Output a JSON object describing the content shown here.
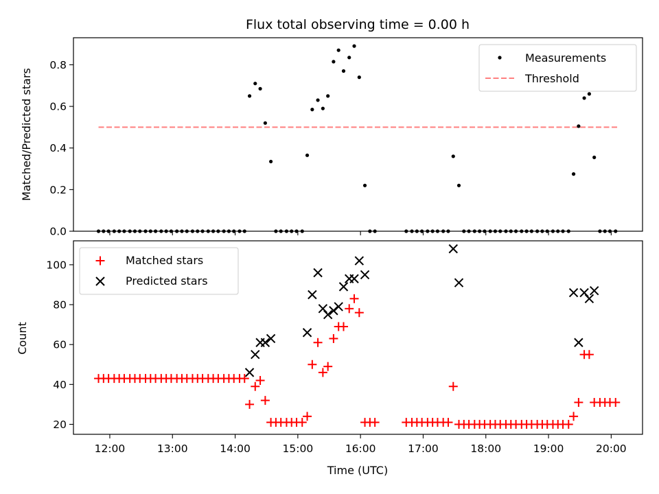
{
  "chart_data": [
    {
      "type": "scatter",
      "title": "Flux total observing time = 0.00 h",
      "xlabel": "",
      "ylabel": "Matched/Predicted stars",
      "xlim": [
        11.42,
        20.5
      ],
      "ylim": [
        0,
        0.93
      ],
      "yticks": [
        0.0,
        0.2,
        0.4,
        0.6,
        0.8
      ],
      "ytick_labels": [
        "0.0",
        "0.2",
        "0.4",
        "0.6",
        "0.8"
      ],
      "legend_position": "top-right",
      "series": [
        {
          "name": "Measurements",
          "kind": "points",
          "color": "#000000",
          "points": [
            [
              11.82,
              0
            ],
            [
              11.9,
              0
            ],
            [
              11.98,
              0
            ],
            [
              12.07,
              0
            ],
            [
              12.15,
              0
            ],
            [
              12.23,
              0
            ],
            [
              12.32,
              0
            ],
            [
              12.4,
              0
            ],
            [
              12.48,
              0
            ],
            [
              12.57,
              0
            ],
            [
              12.65,
              0
            ],
            [
              12.73,
              0
            ],
            [
              12.82,
              0
            ],
            [
              12.9,
              0
            ],
            [
              12.98,
              0
            ],
            [
              13.07,
              0
            ],
            [
              13.15,
              0
            ],
            [
              13.23,
              0
            ],
            [
              13.32,
              0
            ],
            [
              13.4,
              0
            ],
            [
              13.48,
              0
            ],
            [
              13.57,
              0
            ],
            [
              13.65,
              0
            ],
            [
              13.73,
              0
            ],
            [
              13.82,
              0
            ],
            [
              13.9,
              0
            ],
            [
              13.98,
              0
            ],
            [
              14.07,
              0
            ],
            [
              14.15,
              0
            ],
            [
              14.23,
              0.65
            ],
            [
              14.32,
              0.71
            ],
            [
              14.4,
              0.685
            ],
            [
              14.48,
              0.52
            ],
            [
              14.57,
              0.335
            ],
            [
              14.65,
              0
            ],
            [
              14.73,
              0
            ],
            [
              14.82,
              0
            ],
            [
              14.9,
              0
            ],
            [
              14.98,
              0
            ],
            [
              15.07,
              0
            ],
            [
              15.15,
              0.365
            ],
            [
              15.23,
              0.585
            ],
            [
              15.32,
              0.63
            ],
            [
              15.4,
              0.59
            ],
            [
              15.48,
              0.65
            ],
            [
              15.57,
              0.815
            ],
            [
              15.65,
              0.87
            ],
            [
              15.73,
              0.77
            ],
            [
              15.82,
              0.835
            ],
            [
              15.9,
              0.89
            ],
            [
              15.98,
              0.74
            ],
            [
              16.07,
              0.22
            ],
            [
              16.15,
              0
            ],
            [
              16.23,
              0
            ],
            [
              16.73,
              0
            ],
            [
              16.82,
              0
            ],
            [
              16.9,
              0
            ],
            [
              16.98,
              0
            ],
            [
              17.07,
              0
            ],
            [
              17.15,
              0
            ],
            [
              17.23,
              0
            ],
            [
              17.32,
              0
            ],
            [
              17.4,
              0
            ],
            [
              17.48,
              0.36
            ],
            [
              17.57,
              0.22
            ],
            [
              17.65,
              0
            ],
            [
              17.73,
              0
            ],
            [
              17.82,
              0
            ],
            [
              17.9,
              0
            ],
            [
              17.98,
              0
            ],
            [
              18.07,
              0
            ],
            [
              18.15,
              0
            ],
            [
              18.23,
              0
            ],
            [
              18.32,
              0
            ],
            [
              18.4,
              0
            ],
            [
              18.48,
              0
            ],
            [
              18.57,
              0
            ],
            [
              18.65,
              0
            ],
            [
              18.73,
              0
            ],
            [
              18.82,
              0
            ],
            [
              18.9,
              0
            ],
            [
              18.98,
              0
            ],
            [
              19.07,
              0
            ],
            [
              19.15,
              0
            ],
            [
              19.23,
              0
            ],
            [
              19.32,
              0
            ],
            [
              19.4,
              0.275
            ],
            [
              19.48,
              0.505
            ],
            [
              19.57,
              0.64
            ],
            [
              19.65,
              0.66
            ],
            [
              19.73,
              0.355
            ],
            [
              19.82,
              0
            ],
            [
              19.9,
              0
            ],
            [
              19.98,
              0
            ],
            [
              20.07,
              0
            ]
          ]
        },
        {
          "name": "Threshold",
          "kind": "dashed-line",
          "color": "#ff7f7f",
          "x": [
            11.82,
            20.1
          ],
          "y": [
            0.5,
            0.5
          ]
        }
      ]
    },
    {
      "type": "scatter",
      "title": "",
      "xlabel": "Time (UTC)",
      "ylabel": "Count",
      "xlim": [
        11.42,
        20.5
      ],
      "ylim": [
        15,
        112
      ],
      "yticks": [
        20,
        40,
        60,
        80,
        100
      ],
      "ytick_labels": [
        "20",
        "40",
        "60",
        "80",
        "100"
      ],
      "xticks": [
        12,
        13,
        14,
        15,
        16,
        17,
        18,
        19,
        20
      ],
      "xtick_labels": [
        "12:00",
        "13:00",
        "14:00",
        "15:00",
        "16:00",
        "17:00",
        "18:00",
        "19:00",
        "20:00"
      ],
      "legend_position": "top-left",
      "series": [
        {
          "name": "Matched stars",
          "kind": "plus",
          "color": "#ff0000",
          "points": [
            [
              11.82,
              43
            ],
            [
              11.9,
              43
            ],
            [
              11.98,
              43
            ],
            [
              12.07,
              43
            ],
            [
              12.15,
              43
            ],
            [
              12.23,
              43
            ],
            [
              12.32,
              43
            ],
            [
              12.4,
              43
            ],
            [
              12.48,
              43
            ],
            [
              12.57,
              43
            ],
            [
              12.65,
              43
            ],
            [
              12.73,
              43
            ],
            [
              12.82,
              43
            ],
            [
              12.9,
              43
            ],
            [
              12.98,
              43
            ],
            [
              13.07,
              43
            ],
            [
              13.15,
              43
            ],
            [
              13.23,
              43
            ],
            [
              13.32,
              43
            ],
            [
              13.4,
              43
            ],
            [
              13.48,
              43
            ],
            [
              13.57,
              43
            ],
            [
              13.65,
              43
            ],
            [
              13.73,
              43
            ],
            [
              13.82,
              43
            ],
            [
              13.9,
              43
            ],
            [
              13.98,
              43
            ],
            [
              14.07,
              43
            ],
            [
              14.15,
              43
            ],
            [
              14.23,
              30
            ],
            [
              14.32,
              39
            ],
            [
              14.4,
              42
            ],
            [
              14.48,
              32
            ],
            [
              14.57,
              21
            ],
            [
              14.65,
              21
            ],
            [
              14.73,
              21
            ],
            [
              14.82,
              21
            ],
            [
              14.9,
              21
            ],
            [
              14.98,
              21
            ],
            [
              15.07,
              21
            ],
            [
              15.15,
              24
            ],
            [
              15.23,
              50
            ],
            [
              15.32,
              61
            ],
            [
              15.4,
              46
            ],
            [
              15.48,
              49
            ],
            [
              15.57,
              63
            ],
            [
              15.65,
              69
            ],
            [
              15.73,
              69
            ],
            [
              15.82,
              78
            ],
            [
              15.9,
              83
            ],
            [
              15.98,
              76
            ],
            [
              16.07,
              21
            ],
            [
              16.15,
              21
            ],
            [
              16.23,
              21
            ],
            [
              16.73,
              21
            ],
            [
              16.82,
              21
            ],
            [
              16.9,
              21
            ],
            [
              16.98,
              21
            ],
            [
              17.07,
              21
            ],
            [
              17.15,
              21
            ],
            [
              17.23,
              21
            ],
            [
              17.32,
              21
            ],
            [
              17.4,
              21
            ],
            [
              17.48,
              39
            ],
            [
              17.57,
              20
            ],
            [
              17.65,
              20
            ],
            [
              17.73,
              20
            ],
            [
              17.82,
              20
            ],
            [
              17.9,
              20
            ],
            [
              17.98,
              20
            ],
            [
              18.07,
              20
            ],
            [
              18.15,
              20
            ],
            [
              18.23,
              20
            ],
            [
              18.32,
              20
            ],
            [
              18.4,
              20
            ],
            [
              18.48,
              20
            ],
            [
              18.57,
              20
            ],
            [
              18.65,
              20
            ],
            [
              18.73,
              20
            ],
            [
              18.82,
              20
            ],
            [
              18.9,
              20
            ],
            [
              18.98,
              20
            ],
            [
              19.07,
              20
            ],
            [
              19.15,
              20
            ],
            [
              19.23,
              20
            ],
            [
              19.32,
              20
            ],
            [
              19.4,
              24
            ],
            [
              19.48,
              31
            ],
            [
              19.57,
              55
            ],
            [
              19.65,
              55
            ],
            [
              19.73,
              31
            ],
            [
              19.82,
              31
            ],
            [
              19.9,
              31
            ],
            [
              19.98,
              31
            ],
            [
              20.07,
              31
            ]
          ]
        },
        {
          "name": "Predicted stars",
          "kind": "x",
          "color": "#000000",
          "points": [
            [
              14.23,
              46
            ],
            [
              14.32,
              55
            ],
            [
              14.4,
              61
            ],
            [
              14.48,
              61
            ],
            [
              14.57,
              63
            ],
            [
              15.15,
              66
            ],
            [
              15.23,
              85
            ],
            [
              15.32,
              96
            ],
            [
              15.4,
              78
            ],
            [
              15.48,
              75
            ],
            [
              15.57,
              77
            ],
            [
              15.65,
              79
            ],
            [
              15.73,
              89
            ],
            [
              15.82,
              93
            ],
            [
              15.9,
              93
            ],
            [
              15.98,
              102
            ],
            [
              16.07,
              95
            ],
            [
              17.48,
              108
            ],
            [
              17.57,
              91
            ],
            [
              19.4,
              86
            ],
            [
              19.48,
              61
            ],
            [
              19.57,
              86
            ],
            [
              19.65,
              83
            ],
            [
              19.73,
              87
            ]
          ]
        }
      ]
    }
  ]
}
